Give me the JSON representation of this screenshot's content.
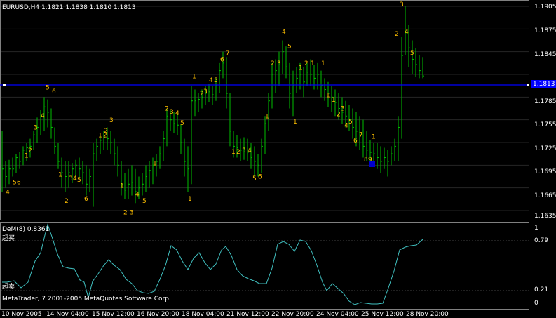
{
  "main_chart": {
    "header": "EURUSD,H4  1.1821 1.1838 1.1810 1.1813",
    "price_labels": [
      "1.1905",
      "1.1875",
      "1.1845",
      "1.1813",
      "1.1785",
      "1.1755",
      "1.1725",
      "1.1695",
      "1.1665",
      "1.1635"
    ],
    "current_price": "1.1813",
    "colors": {
      "bars": "#00c000",
      "numbers": "#ffc000",
      "hline": "#0000ff",
      "grid": "#3a3a3a",
      "text": "#ffffff",
      "highlight_box": "#0000ff"
    }
  },
  "indicator": {
    "header": "DeM(8) 0.8361",
    "overbought_label": "超买",
    "oversold_label": "超卖",
    "scale_labels": [
      "1",
      "0.79",
      "0.21",
      "0"
    ],
    "line_color": "#40c0c0"
  },
  "copyright": "MetaTrader, 7 2001-2005 MetaQuotes Software Corp.",
  "time_labels": [
    "10 Nov 2005",
    "14 Nov 04:00",
    "15 Nov 12:00",
    "16 Nov 20:00",
    "18 Nov 04:00",
    "21 Nov 12:00",
    "22 Nov 20:00",
    "24 Nov 04:00",
    "25 Nov 12:00",
    "28 Nov 20:00"
  ],
  "tags": [
    {
      "t": "4",
      "lvl": 1.1657
    },
    {
      "t": "5",
      "lvl": 1.167
    },
    {
      "t": "6",
      "lvl": 1.167
    },
    {
      "t": "1",
      "lvl": 1.1705
    },
    {
      "t": "2",
      "lvl": 1.1712
    },
    {
      "t": "3",
      "lvl": 1.1742
    },
    {
      "t": "4",
      "lvl": 1.1758
    },
    {
      "t": "5",
      "lvl": 1.1795
    },
    {
      "t": "6",
      "lvl": 1.179
    },
    {
      "t": "1",
      "lvl": 1.168
    },
    {
      "t": "2",
      "lvl": 1.1645
    },
    {
      "t": "3",
      "lvl": 1.1675
    },
    {
      "t": "4",
      "lvl": 1.1675
    },
    {
      "t": "5",
      "lvl": 1.1673
    },
    {
      "t": "6",
      "lvl": 1.1648
    },
    {
      "t": "1",
      "lvl": 1.1732
    },
    {
      "t": "2",
      "lvl": 1.1738
    },
    {
      "t": "3",
      "lvl": 1.1752
    },
    {
      "t": "2",
      "lvl": 1.1732
    },
    {
      "t": "1",
      "lvl": 1.1665
    },
    {
      "t": "2",
      "lvl": 1.163
    },
    {
      "t": "3",
      "lvl": 1.163
    },
    {
      "t": "4",
      "lvl": 1.1654
    },
    {
      "t": "5",
      "lvl": 1.1645
    },
    {
      "t": "1",
      "lvl": 1.1695
    },
    {
      "t": "2",
      "lvl": 1.1767
    },
    {
      "t": "3",
      "lvl": 1.1763
    },
    {
      "t": "4",
      "lvl": 1.1761
    },
    {
      "t": "5",
      "lvl": 1.1748
    },
    {
      "t": "1",
      "lvl": 1.1648
    },
    {
      "t": "1",
      "lvl": 1.181
    },
    {
      "t": "2",
      "lvl": 1.1787
    },
    {
      "t": "3",
      "lvl": 1.179
    },
    {
      "t": "4",
      "lvl": 1.1805
    },
    {
      "t": "5",
      "lvl": 1.1805
    },
    {
      "t": "6",
      "lvl": 1.1832
    },
    {
      "t": "7",
      "lvl": 1.1841
    },
    {
      "t": "1",
      "lvl": 1.171
    },
    {
      "t": "2",
      "lvl": 1.171
    },
    {
      "t": "3",
      "lvl": 1.1712
    },
    {
      "t": "4",
      "lvl": 1.1712
    },
    {
      "t": "5",
      "lvl": 1.1675
    },
    {
      "t": "6",
      "lvl": 1.1677
    },
    {
      "t": "1",
      "lvl": 1.1757
    },
    {
      "t": "2",
      "lvl": 1.1827
    },
    {
      "t": "3",
      "lvl": 1.1827
    },
    {
      "t": "4",
      "lvl": 1.1869
    },
    {
      "t": "5",
      "lvl": 1.185
    },
    {
      "t": "1",
      "lvl": 1.175
    },
    {
      "t": "1",
      "lvl": 1.1821
    },
    {
      "t": "2",
      "lvl": 1.1827
    },
    {
      "t": "1",
      "lvl": 1.1827
    },
    {
      "t": "1",
      "lvl": 1.1827
    },
    {
      "t": "1",
      "lvl": 1.1785
    },
    {
      "t": "1",
      "lvl": 1.1779
    },
    {
      "t": "2",
      "lvl": 1.176
    },
    {
      "t": "3",
      "lvl": 1.1767
    },
    {
      "t": "4",
      "lvl": 1.1745
    },
    {
      "t": "5",
      "lvl": 1.175
    },
    {
      "t": "6",
      "lvl": 1.1725
    },
    {
      "t": "7",
      "lvl": 1.1733
    },
    {
      "t": "8",
      "lvl": 1.17
    },
    {
      "t": "9",
      "lvl": 1.17
    },
    {
      "t": "1",
      "lvl": 1.173
    },
    {
      "t": "2",
      "lvl": 1.1866
    },
    {
      "t": "3",
      "lvl": 1.1905
    },
    {
      "t": "4",
      "lvl": 1.1869
    },
    {
      "t": "5",
      "lvl": 1.1841
    }
  ]
}
